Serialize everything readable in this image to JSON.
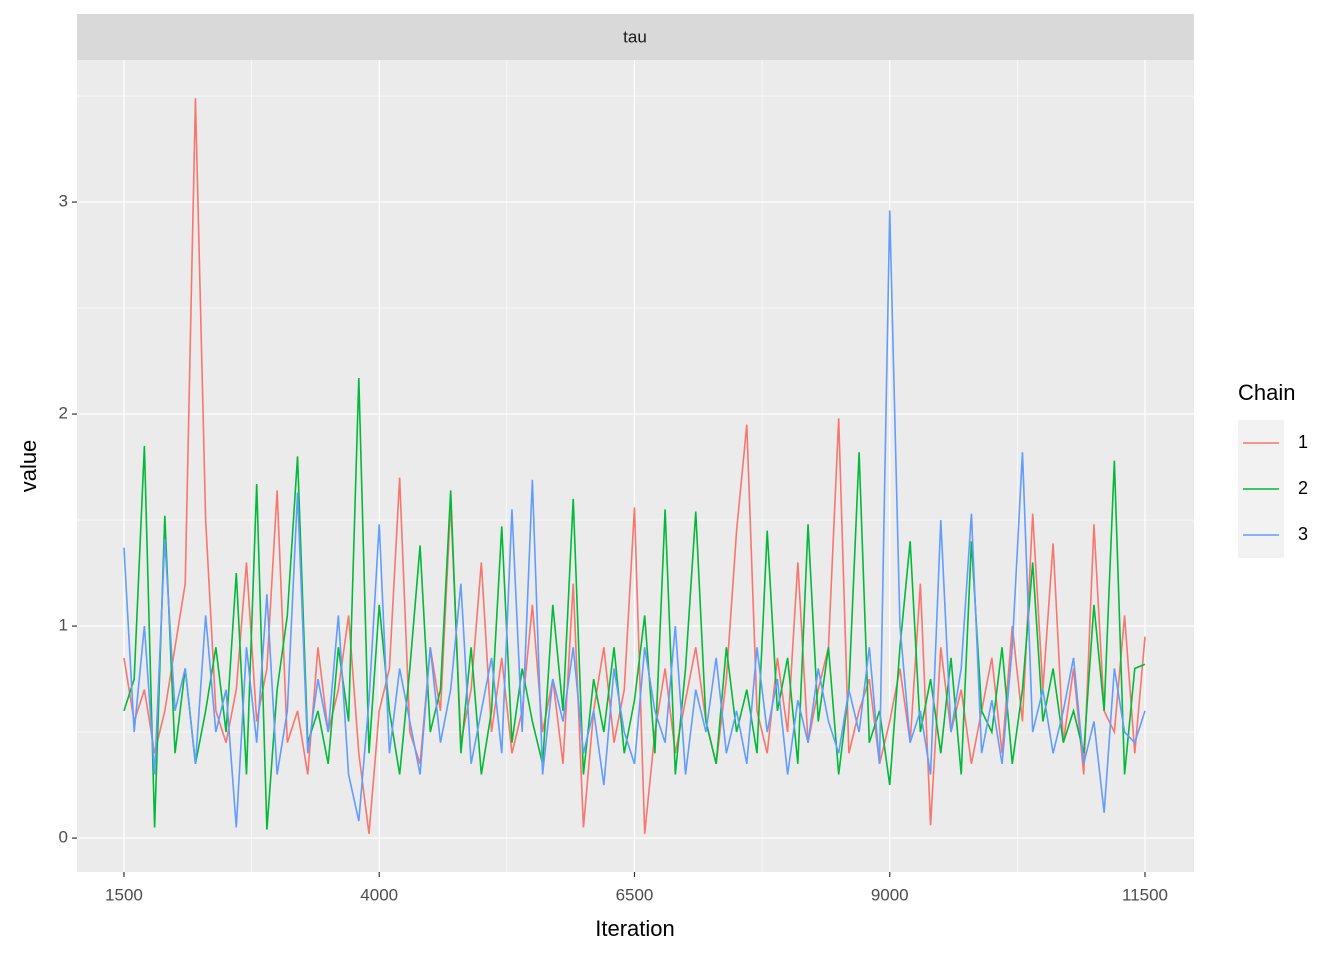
{
  "chart_data": {
    "type": "line",
    "title": "tau",
    "xlabel": "Iteration",
    "ylabel": "value",
    "legend_title": "Chain",
    "legend_position": "right",
    "grid": true,
    "xlim": [
      1040,
      11980
    ],
    "ylim": [
      -0.16,
      3.67
    ],
    "xticks": [
      1500,
      4000,
      6500,
      9000,
      11500
    ],
    "yticks": [
      0,
      1,
      2,
      3
    ],
    "x": [
      1500,
      1600,
      1700,
      1800,
      1900,
      2000,
      2100,
      2200,
      2300,
      2400,
      2500,
      2600,
      2700,
      2800,
      2900,
      3000,
      3100,
      3200,
      3300,
      3400,
      3500,
      3600,
      3700,
      3800,
      3900,
      4000,
      4100,
      4200,
      4300,
      4400,
      4500,
      4600,
      4700,
      4800,
      4900,
      5000,
      5100,
      5200,
      5300,
      5400,
      5500,
      5600,
      5700,
      5800,
      5900,
      6000,
      6100,
      6200,
      6300,
      6400,
      6500,
      6600,
      6700,
      6800,
      6900,
      7000,
      7100,
      7200,
      7300,
      7400,
      7500,
      7600,
      7700,
      7800,
      7900,
      8000,
      8100,
      8200,
      8300,
      8400,
      8500,
      8600,
      8700,
      8800,
      8900,
      9000,
      9100,
      9200,
      9300,
      9400,
      9500,
      9600,
      9700,
      9800,
      9900,
      10000,
      10100,
      10200,
      10300,
      10400,
      10500,
      10600,
      10700,
      10800,
      10900,
      11000,
      11100,
      11200,
      11300,
      11400,
      11500
    ],
    "series": [
      {
        "name": "1",
        "color": "#F8766D",
        "values": [
          0.85,
          0.55,
          0.7,
          0.4,
          0.6,
          0.9,
          1.2,
          3.49,
          1.5,
          0.6,
          0.45,
          0.7,
          1.3,
          0.55,
          0.8,
          1.64,
          0.45,
          0.6,
          0.3,
          0.9,
          0.5,
          0.7,
          1.05,
          0.4,
          0.02,
          0.6,
          0.8,
          1.7,
          0.5,
          0.35,
          0.9,
          0.6,
          1.58,
          0.45,
          0.7,
          1.3,
          0.5,
          0.85,
          0.4,
          0.6,
          1.1,
          0.5,
          0.75,
          0.35,
          1.2,
          0.05,
          0.6,
          0.9,
          0.45,
          0.7,
          1.56,
          0.02,
          0.5,
          0.8,
          0.4,
          0.65,
          0.9,
          0.55,
          0.35,
          0.75,
          1.45,
          1.95,
          0.6,
          0.4,
          0.85,
          0.5,
          1.3,
          0.45,
          0.7,
          0.9,
          1.98,
          0.4,
          0.6,
          0.75,
          0.35,
          0.55,
          0.8,
          0.45,
          1.2,
          0.06,
          0.9,
          0.5,
          0.7,
          0.35,
          0.6,
          0.85,
          0.4,
          1.0,
          0.55,
          1.53,
          0.7,
          1.39,
          0.45,
          0.8,
          0.3,
          1.48,
          0.6,
          0.5,
          1.05,
          0.4,
          0.95
        ]
      },
      {
        "name": "2",
        "color": "#00BA38",
        "values": [
          0.6,
          0.75,
          1.85,
          0.05,
          1.52,
          0.4,
          0.8,
          0.35,
          0.6,
          0.9,
          0.5,
          1.25,
          0.3,
          1.67,
          0.04,
          0.7,
          1.05,
          1.8,
          0.45,
          0.6,
          0.35,
          0.9,
          0.55,
          2.17,
          0.4,
          1.1,
          0.6,
          0.3,
          0.8,
          1.38,
          0.5,
          0.7,
          1.64,
          0.4,
          0.9,
          0.3,
          0.6,
          1.47,
          0.45,
          0.8,
          0.55,
          0.35,
          1.1,
          0.6,
          1.6,
          0.3,
          0.75,
          0.5,
          0.9,
          0.4,
          0.65,
          1.05,
          0.4,
          1.55,
          0.3,
          0.8,
          1.54,
          0.55,
          0.35,
          0.9,
          0.5,
          0.7,
          0.4,
          1.45,
          0.6,
          0.85,
          0.35,
          1.48,
          0.55,
          0.9,
          0.3,
          0.7,
          1.82,
          0.45,
          0.6,
          0.25,
          0.9,
          1.4,
          0.5,
          0.75,
          0.4,
          0.85,
          0.3,
          1.4,
          0.6,
          0.5,
          0.9,
          0.35,
          0.7,
          1.3,
          0.55,
          0.8,
          0.45,
          0.6,
          0.4,
          1.1,
          0.6,
          1.78,
          0.3,
          0.8,
          0.82
        ]
      },
      {
        "name": "3",
        "color": "#619CFF",
        "values": [
          1.37,
          0.5,
          1.0,
          0.3,
          1.41,
          0.6,
          0.8,
          0.35,
          1.05,
          0.5,
          0.7,
          0.05,
          0.9,
          0.45,
          1.15,
          0.3,
          0.6,
          1.63,
          0.4,
          0.75,
          0.5,
          1.05,
          0.3,
          0.08,
          0.65,
          1.48,
          0.4,
          0.8,
          0.55,
          0.3,
          0.9,
          0.45,
          0.7,
          1.2,
          0.35,
          0.6,
          0.85,
          0.4,
          1.55,
          0.5,
          1.69,
          0.3,
          0.75,
          0.55,
          0.9,
          0.4,
          0.6,
          0.25,
          0.8,
          0.5,
          0.35,
          0.9,
          0.6,
          0.45,
          1.0,
          0.3,
          0.7,
          0.5,
          0.85,
          0.4,
          0.6,
          0.35,
          0.9,
          0.5,
          0.75,
          0.3,
          0.65,
          0.45,
          0.8,
          0.55,
          0.4,
          0.7,
          0.5,
          0.9,
          0.35,
          2.96,
          1.0,
          0.45,
          0.6,
          0.3,
          1.5,
          0.5,
          0.8,
          1.53,
          0.4,
          0.65,
          0.35,
          0.9,
          1.82,
          0.5,
          0.7,
          0.4,
          0.6,
          0.85,
          0.35,
          0.55,
          0.12,
          0.8,
          0.5,
          0.45,
          0.6
        ]
      }
    ]
  }
}
